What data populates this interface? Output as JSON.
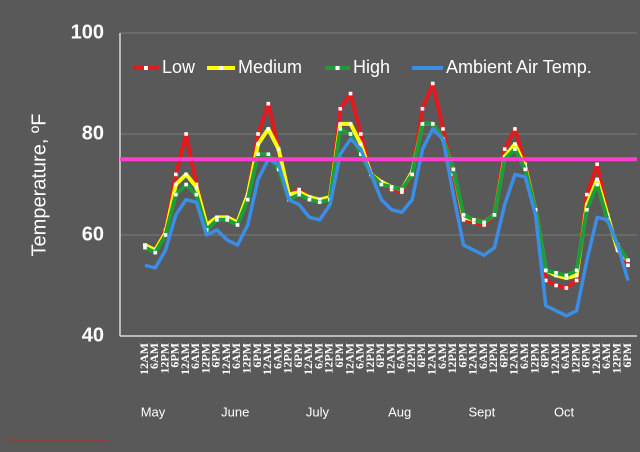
{
  "chart_data": {
    "type": "line",
    "y_label": "Temperature, ºF",
    "categories": [
      "12AM",
      "6AM",
      "12PM",
      "6PM",
      "12AM",
      "6AM",
      "12PM",
      "6PM",
      "12AM",
      "6AM",
      "12PM",
      "6PM",
      "12AM",
      "6AM",
      "12PM",
      "6PM",
      "12AM",
      "6AM",
      "12PM",
      "6PM",
      "12AM",
      "6AM",
      "12PM",
      "6PM",
      "12AM",
      "6AM",
      "12PM",
      "6PM",
      "12AM",
      "6AM",
      "12PM",
      "6PM",
      "12AM",
      "6AM",
      "12PM",
      "6PM",
      "12AM",
      "6AM",
      "12PM",
      "6PM",
      "12AM",
      "6AM",
      "12PM",
      "6PM",
      "12AM",
      "6AM",
      "12PM",
      "6PM"
    ],
    "months": [
      "May",
      "June",
      "July",
      "Aug",
      "Sept",
      "Oct"
    ],
    "series": [
      {
        "name": "Low",
        "color": "#e3191e",
        "values": [
          58,
          57,
          61,
          72,
          80,
          70,
          62,
          63.5,
          63,
          62,
          68,
          80,
          86,
          77,
          68,
          69,
          67.5,
          67,
          67,
          85,
          88,
          80,
          72,
          70.5,
          69,
          68.5,
          72,
          85,
          90,
          81,
          72,
          63,
          62.5,
          62,
          64,
          77,
          81,
          74,
          65,
          51,
          50,
          49.5,
          51,
          68,
          74,
          64,
          57,
          54
        ]
      },
      {
        "name": "Medium",
        "color": "#ffff00",
        "values": [
          58,
          57,
          60.5,
          70,
          72,
          69.5,
          62,
          63.5,
          63.5,
          62.5,
          68,
          78,
          81,
          77,
          68,
          68.5,
          67.5,
          67,
          67.5,
          82,
          82,
          78,
          72,
          70.5,
          69.5,
          69,
          72.5,
          82,
          82,
          79,
          73,
          63.5,
          63,
          62.5,
          64,
          75.5,
          78,
          73.5,
          65,
          53,
          52,
          51.5,
          52,
          66,
          71,
          64,
          57,
          55
        ]
      },
      {
        "name": "High",
        "color": "#1f9c3a",
        "values": [
          57.5,
          56.5,
          60,
          68,
          70,
          68,
          61,
          63,
          63,
          62,
          67,
          76,
          76,
          73,
          67,
          68,
          67,
          66.5,
          67,
          81,
          80,
          76,
          72,
          70,
          69.5,
          69,
          72,
          82,
          82,
          79,
          73,
          64,
          63,
          62.5,
          64,
          75,
          77,
          73,
          65,
          53,
          52.5,
          52,
          53,
          65,
          70,
          63,
          58,
          55
        ]
      },
      {
        "name": "Ambient Air Temp.",
        "color": "#3a8ee6",
        "values": [
          54,
          53.5,
          57,
          64,
          67,
          66.5,
          60,
          61,
          59,
          58,
          62,
          71,
          75,
          74,
          67,
          66,
          63.5,
          63,
          66,
          76,
          79,
          77,
          72,
          67,
          65,
          64.5,
          67,
          77,
          81,
          79,
          68,
          58,
          57,
          56,
          57.5,
          66,
          72,
          71.5,
          64,
          46,
          45,
          44,
          45,
          55,
          63.5,
          63,
          58,
          51
        ]
      }
    ],
    "reference_line": {
      "value": 75,
      "color": "#ff3fcc"
    },
    "ylim": [
      40,
      100
    ],
    "yticks": [
      40,
      60,
      80,
      100
    ],
    "grid": true
  }
}
